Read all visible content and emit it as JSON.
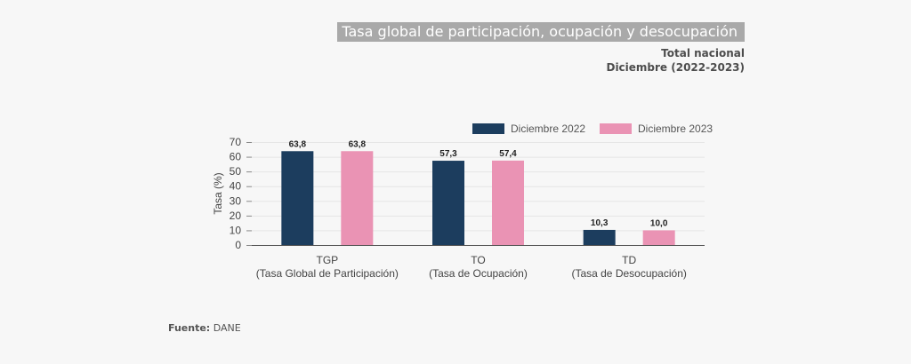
{
  "header": {
    "title": "Tasa global de participación, ocupación y desocupación",
    "subtitle_1": "Total nacional",
    "subtitle_2": "Diciembre (2022-2023)"
  },
  "footer": {
    "source_label": "Fuente:",
    "source_value": "DANE"
  },
  "chart_data": {
    "type": "bar",
    "title": "Tasa global de participación, ocupación y desocupación",
    "xlabel": "",
    "ylabel": "Tasa (%)",
    "ylim": [
      0,
      70
    ],
    "yticks": [
      0,
      10,
      20,
      30,
      40,
      50,
      60,
      70
    ],
    "grid": true,
    "legend_position": "top-right",
    "categories": [
      {
        "short": "TGP",
        "long": "(Tasa Global de Participación)"
      },
      {
        "short": "TO",
        "long": "(Tasa de Ocupación)"
      },
      {
        "short": "TD",
        "long": "(Tasa de Desocupación)"
      }
    ],
    "series": [
      {
        "name": "Diciembre 2022",
        "color": "#1c3d5e",
        "values": [
          63.8,
          57.3,
          10.3
        ],
        "labels": [
          "63,8",
          "57,3",
          "10,3"
        ]
      },
      {
        "name": "Diciembre 2023",
        "color": "#ea93b4",
        "values": [
          63.8,
          57.4,
          10.0
        ],
        "labels": [
          "63,8",
          "57,4",
          "10,0"
        ]
      }
    ]
  }
}
